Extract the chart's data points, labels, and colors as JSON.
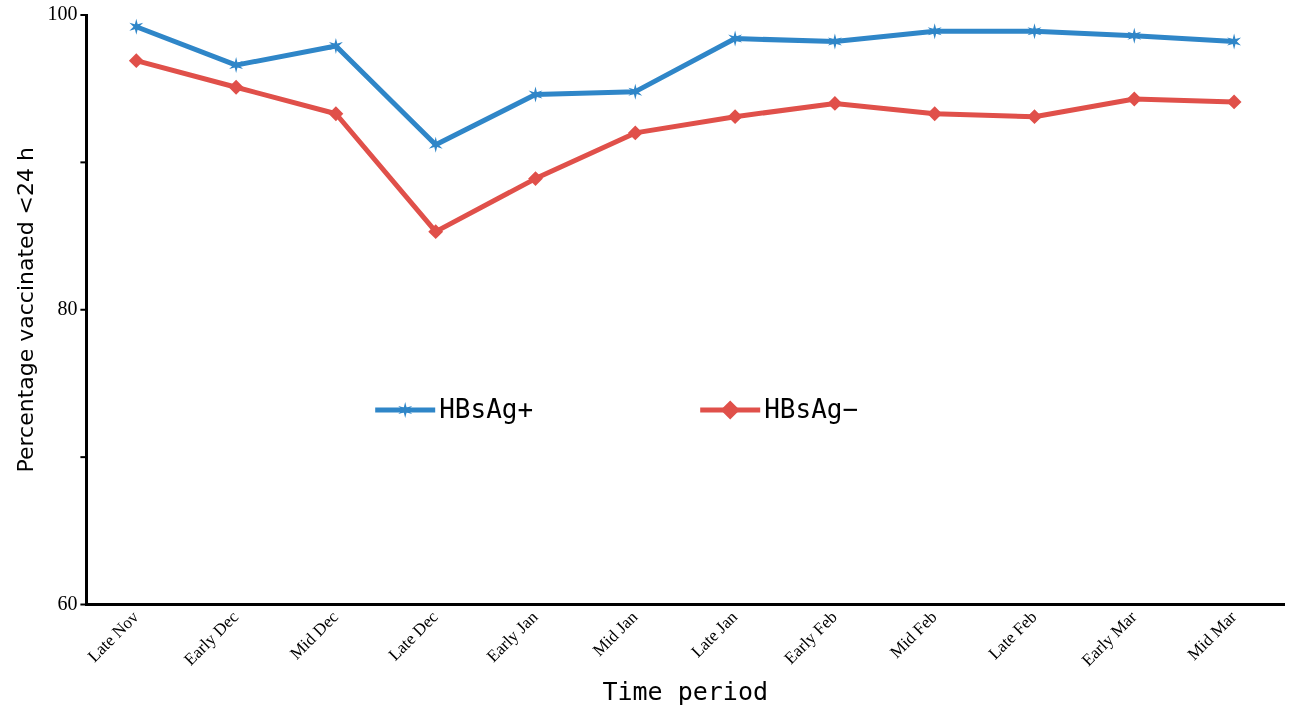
{
  "chart_data": {
    "type": "line",
    "xlabel": "Time period",
    "ylabel": "Percentage vaccinated <24 h",
    "categories": [
      "Late Nov",
      "Early Dec",
      "Mid Dec",
      "Late Dec",
      "Early Jan",
      "Mid Jan",
      "Late Jan",
      "Early Feb",
      "Mid Feb",
      "Late Feb",
      "Early Mar",
      "Mid Mar"
    ],
    "series": [
      {
        "name": "HBsAg+",
        "color": "#2f86c8",
        "marker": "cross",
        "values": [
          99.2,
          96.6,
          97.9,
          91.2,
          94.6,
          94.8,
          98.4,
          98.2,
          98.9,
          98.9,
          98.6,
          98.2
        ]
      },
      {
        "name": "HBsAg−",
        "color": "#e0504a",
        "marker": "diamond",
        "values": [
          96.9,
          95.1,
          93.3,
          85.3,
          88.9,
          92.0,
          93.1,
          94.0,
          93.3,
          93.1,
          94.3,
          94.1
        ]
      }
    ],
    "ylim": [
      60,
      100
    ],
    "yticks": [
      60,
      {
        "value": 70,
        "label": null
      },
      80,
      {
        "value": 90,
        "label": null
      },
      100
    ],
    "grid": false,
    "legend": "center",
    "line_style": "solid"
  }
}
